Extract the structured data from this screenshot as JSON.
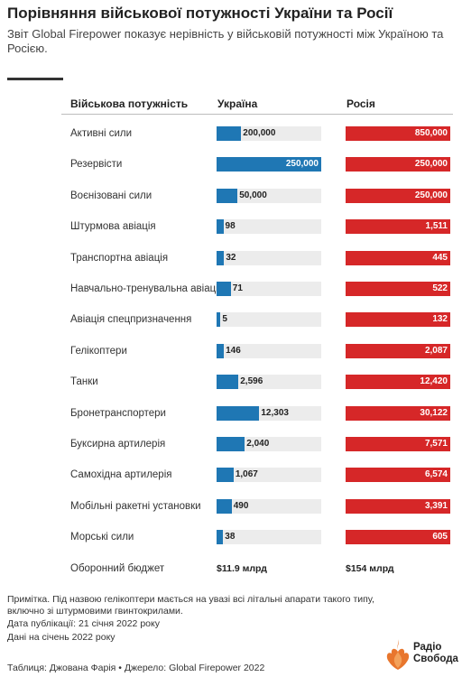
{
  "title": "Порівняння військової потужності України та Росії",
  "subtitle": "Звіт Global Firepower показує нерівність у військовій потужності між Україною та Росією.",
  "columns": {
    "category": "Військова потужність",
    "ukraine": "Україна",
    "russia": "Росія"
  },
  "colors": {
    "ukraine": "#1f77b4",
    "russia": "#d62728",
    "track": "#ececec"
  },
  "chart_data": {
    "type": "table",
    "title": "Порівняння військової потужності України та Росії",
    "series": [
      {
        "name": "Україна",
        "color": "#1f77b4"
      },
      {
        "name": "Росія",
        "color": "#d62728"
      }
    ],
    "rows": [
      {
        "label": "Активні сили",
        "ukraine": 200000,
        "ukraine_text": "200,000",
        "russia": 850000,
        "russia_text": "850,000"
      },
      {
        "label": "Резервісти",
        "ukraine": 250000,
        "ukraine_text": "250,000",
        "russia": 250000,
        "russia_text": "250,000"
      },
      {
        "label": "Воєнізовані сили",
        "ukraine": 50000,
        "ukraine_text": "50,000",
        "russia": 250000,
        "russia_text": "250,000"
      },
      {
        "label": "Штурмова авіація",
        "ukraine": 98,
        "ukraine_text": "98",
        "russia": 1511,
        "russia_text": "1,511"
      },
      {
        "label": "Транспортна авіація",
        "ukraine": 32,
        "ukraine_text": "32",
        "russia": 445,
        "russia_text": "445"
      },
      {
        "label": "Навчально-тренувальна авіація",
        "ukraine": 71,
        "ukraine_text": "71",
        "russia": 522,
        "russia_text": "522"
      },
      {
        "label": "Авіація спецпризначення",
        "ukraine": 5,
        "ukraine_text": "5",
        "russia": 132,
        "russia_text": "132"
      },
      {
        "label": "Гелікоптери",
        "ukraine": 146,
        "ukraine_text": "146",
        "russia": 2087,
        "russia_text": "2,087"
      },
      {
        "label": "Танки",
        "ukraine": 2596,
        "ukraine_text": "2,596",
        "russia": 12420,
        "russia_text": "12,420"
      },
      {
        "label": "Бронетранспортери",
        "ukraine": 12303,
        "ukraine_text": "12,303",
        "russia": 30122,
        "russia_text": "30,122"
      },
      {
        "label": "Буксирна артилерія",
        "ukraine": 2040,
        "ukraine_text": "2,040",
        "russia": 7571,
        "russia_text": "7,571"
      },
      {
        "label": "Самохідна артилерія",
        "ukraine": 1067,
        "ukraine_text": "1,067",
        "russia": 6574,
        "russia_text": "6,574"
      },
      {
        "label": "Мобільні ракетні установки",
        "ukraine": 490,
        "ukraine_text": "490",
        "russia": 3391,
        "russia_text": "3,391"
      },
      {
        "label": "Морські сили",
        "ukraine": 38,
        "ukraine_text": "38",
        "russia": 605,
        "russia_text": "605"
      }
    ],
    "budget": {
      "label": "Оборонний бюджет",
      "ukraine": "$11.9 млрд",
      "russia": "$154 млрд"
    }
  },
  "notes": [
    "Примітка. Під назвою гелікоптери мається на увазі всі літальні апарати такого типу, включно зі штурмовими гвинтокрилами.",
    "Дата публікації: 21 січня 2022 року",
    "Дані на січень 2022 року"
  ],
  "footer": "Таблиця: Джована Фарія • Джерело: Global Firepower 2022",
  "logo": {
    "line1": "Радіо",
    "line2": "Свобода",
    "icon": "radio-svoboda-flame-logo",
    "color": "#e8762d"
  }
}
